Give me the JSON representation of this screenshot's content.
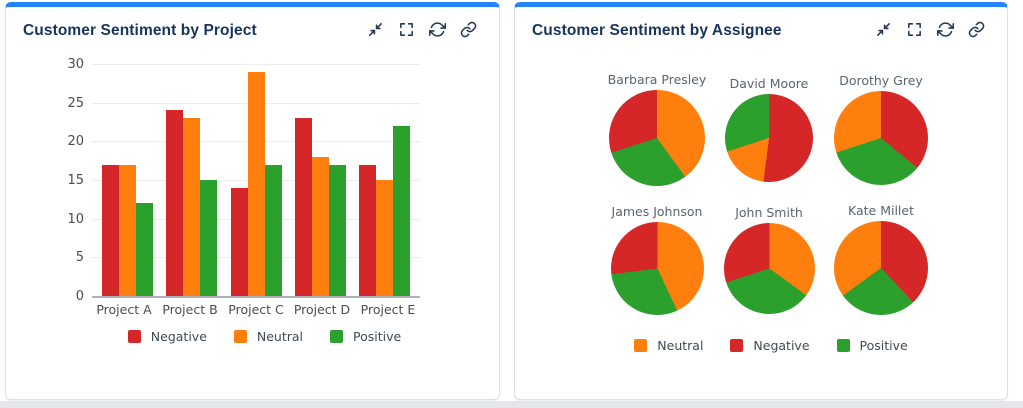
{
  "app": {
    "accent_color": "#2684ff",
    "title_color": "#17345e",
    "icon_color": "#253858"
  },
  "sentiment_colors": {
    "Negative": "#d62728",
    "Neutral": "#ff7f0e",
    "Positive": "#2ca02c"
  },
  "panels": [
    {
      "title": "Customer Sentiment by Project",
      "toolbar": [
        "collapse-icon",
        "expand-icon",
        "refresh-icon",
        "link-icon"
      ]
    },
    {
      "title": "Customer Sentiment by Assignee",
      "toolbar": [
        "collapse-icon",
        "expand-icon",
        "refresh-icon",
        "link-icon"
      ]
    }
  ],
  "chart_data": [
    {
      "type": "bar",
      "title": "Customer Sentiment by Project",
      "categories": [
        "Project A",
        "Project B",
        "Project C",
        "Project D",
        "Project E"
      ],
      "series": [
        {
          "name": "Negative",
          "color": "#d62728",
          "values": [
            17,
            24,
            14,
            23,
            17
          ]
        },
        {
          "name": "Neutral",
          "color": "#ff7f0e",
          "values": [
            17,
            23,
            29,
            18,
            15
          ]
        },
        {
          "name": "Positive",
          "color": "#2ca02c",
          "values": [
            12,
            15,
            17,
            17,
            22
          ]
        }
      ],
      "xlabel": "",
      "ylabel": "",
      "ylim": [
        0,
        30
      ],
      "yticks": [
        0,
        5,
        10,
        15,
        20,
        25,
        30
      ],
      "grid": true,
      "legend": [
        "Negative",
        "Neutral",
        "Positive"
      ],
      "legend_position": "bottom"
    },
    {
      "type": "pie",
      "title": "Customer Sentiment by Assignee",
      "legend": [
        "Neutral",
        "Negative",
        "Positive"
      ],
      "legend_position": "bottom",
      "pies": [
        {
          "name": "Barbara Presley",
          "diameter": 96,
          "slices": [
            {
              "label": "Neutral",
              "value": 40
            },
            {
              "label": "Positive",
              "value": 30
            },
            {
              "label": "Negative",
              "value": 30
            }
          ]
        },
        {
          "name": "David Moore",
          "diameter": 88,
          "slices": [
            {
              "label": "Negative",
              "value": 52
            },
            {
              "label": "Neutral",
              "value": 18
            },
            {
              "label": "Positive",
              "value": 30
            }
          ]
        },
        {
          "name": "Dorothy Grey",
          "diameter": 94,
          "slices": [
            {
              "label": "Negative",
              "value": 36
            },
            {
              "label": "Positive",
              "value": 34
            },
            {
              "label": "Neutral",
              "value": 30
            }
          ]
        },
        {
          "name": "James Johnson",
          "diameter": 93,
          "slices": [
            {
              "label": "Neutral",
              "value": 43
            },
            {
              "label": "Positive",
              "value": 30
            },
            {
              "label": "Negative",
              "value": 27
            }
          ]
        },
        {
          "name": "John Smith",
          "diameter": 91,
          "slices": [
            {
              "label": "Neutral",
              "value": 35
            },
            {
              "label": "Positive",
              "value": 35
            },
            {
              "label": "Negative",
              "value": 30
            }
          ]
        },
        {
          "name": "Kate Millet",
          "diameter": 94,
          "slices": [
            {
              "label": "Negative",
              "value": 38
            },
            {
              "label": "Positive",
              "value": 27
            },
            {
              "label": "Neutral",
              "value": 35
            }
          ]
        }
      ]
    }
  ]
}
